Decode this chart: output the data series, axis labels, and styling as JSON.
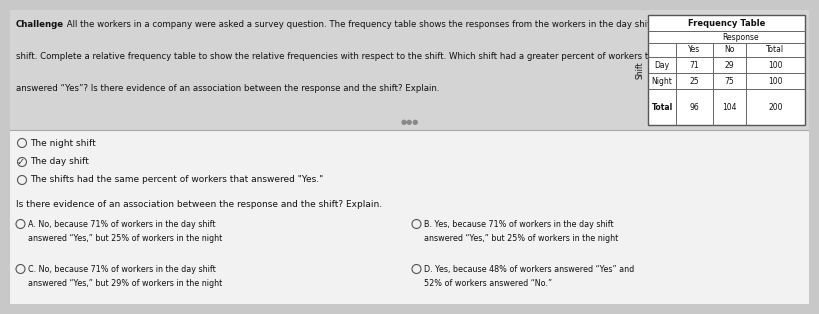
{
  "bg_color": "#c8c8c8",
  "top_bg": "#d8d8d8",
  "bottom_bg": "#f0f0f0",
  "challenge_bold": "Challenge",
  "challenge_text": " All the workers in a company were asked a survey question. The frequency table shows the responses from the workers in the day shift and night shift. Complete a relative frequency table to show the relative frequencies with respect to the shift. Which shift had a greater percent of workers that answered \"Yes\"? Is there evidence of an association between the response and the shift? Explain.",
  "table_title": "Frequency Table",
  "table_subtitle": "Response",
  "table_col_headers": [
    "Yes",
    "No",
    "Total"
  ],
  "table_row_headers": [
    "Day",
    "Night",
    "Total"
  ],
  "table_data": [
    [
      71,
      29,
      100
    ],
    [
      25,
      75,
      100
    ],
    [
      96,
      104,
      200
    ]
  ],
  "shift_label": "Shift",
  "separator_label": "●●●",
  "radio_options": [
    {
      "text": "The night shift",
      "selected": false,
      "check": false
    },
    {
      "text": "The day shift",
      "selected": true,
      "check": true
    },
    {
      "text": "The shifts had the same percent of workers that answered \"Yes.\"",
      "selected": false,
      "check": false
    }
  ],
  "assoc_question": "Is there evidence of an association between the response and the shift? Explain.",
  "answer_options": [
    {
      "label": "A.",
      "col": 0,
      "row": 0,
      "text": "No, because 71% of workers in the day shift answered “Yes,” but 25% of workers in the night shift answered “Yes.”"
    },
    {
      "label": "B.",
      "col": 1,
      "row": 0,
      "text": "Yes, because 71% of workers in the day shift answered “Yes,” but 25% of workers in the night shift answered “Yes.”"
    },
    {
      "label": "C.",
      "col": 0,
      "row": 1,
      "text": "No, because 71% of workers in the day shift answered “Yes,” but 29% of workers in the night shift answered “No.”"
    },
    {
      "label": "D.",
      "col": 1,
      "row": 1,
      "text": "Yes, because 48% of workers answered “Yes” and 52% of workers answered “No.”"
    }
  ]
}
